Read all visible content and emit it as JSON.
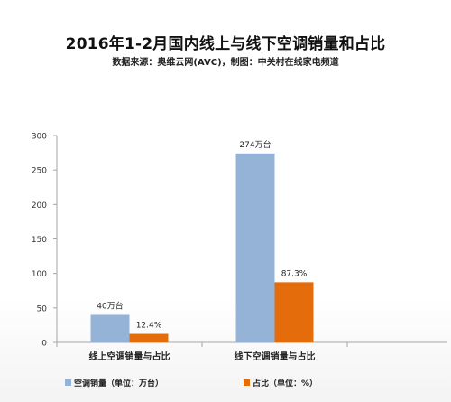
{
  "title": "2016年1-2月国内线上与线下空调销量和占比",
  "subtitle": "数据来源：奥维云网(AVC)，制图：中关村在线家电频道",
  "colors": {
    "series1": "#95b3d7",
    "series2": "#e46c0a",
    "axis": "#a6a6a6",
    "tick_text": "#333333"
  },
  "chart_data": {
    "type": "bar",
    "categories": [
      "线上空调销量与占比",
      "线下空调销量与占比"
    ],
    "ylim": [
      0,
      300
    ],
    "yticks": [
      0,
      50,
      100,
      150,
      200,
      250,
      300
    ],
    "grid": false,
    "legend_position": "bottom-left",
    "series": [
      {
        "name": "空调销量（单位：万台）",
        "values": [
          40,
          274
        ],
        "labels": [
          "40万台",
          "274万台"
        ]
      },
      {
        "name": "占比（单位：%）",
        "values": [
          12.4,
          87.3
        ],
        "labels": [
          "12.4%",
          "87.3%"
        ]
      }
    ]
  }
}
